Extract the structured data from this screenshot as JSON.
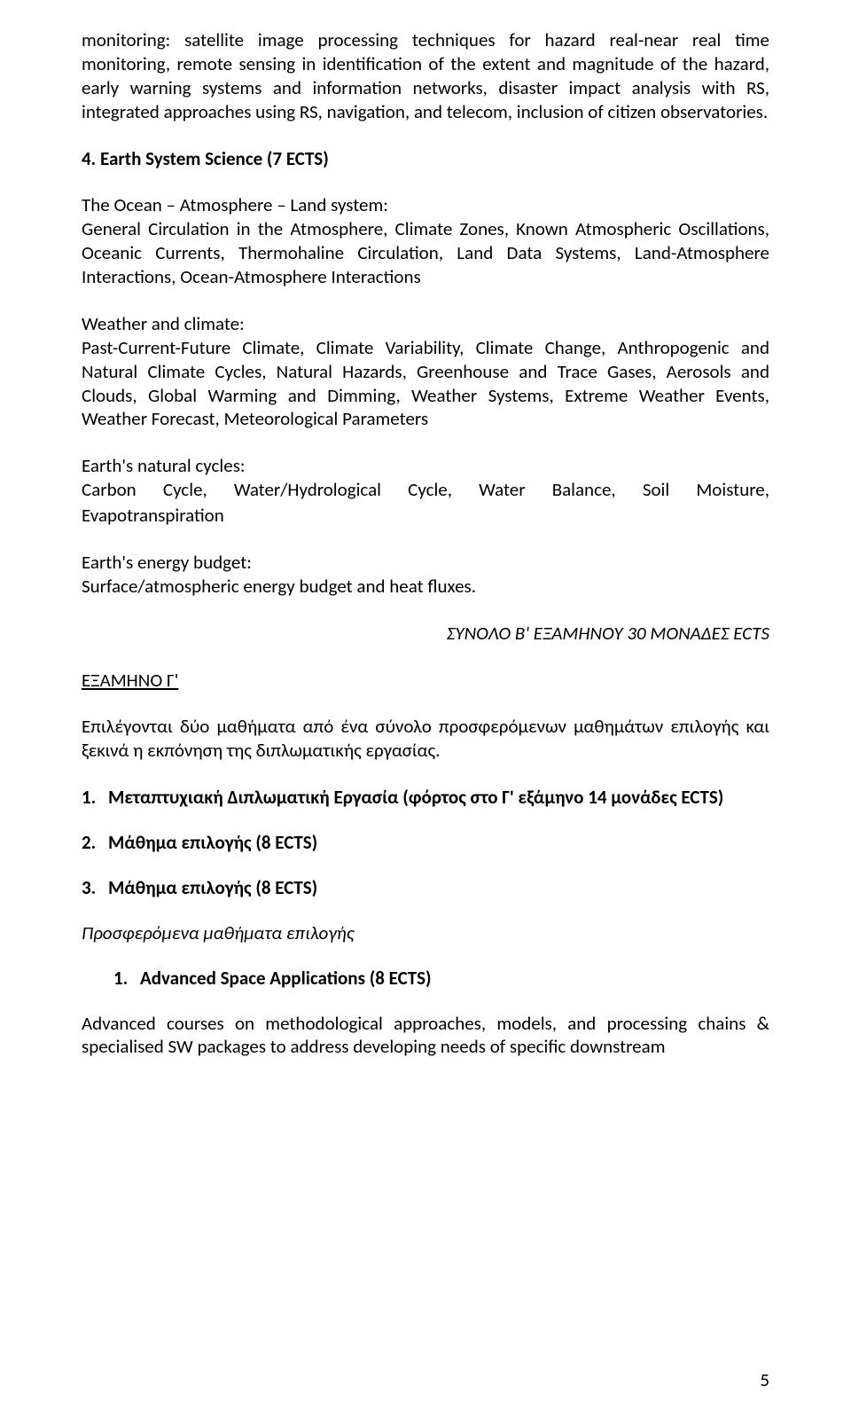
{
  "intro_para": "monitoring: satellite image processing techniques for hazard real-near real time monitoring, remote sensing in identification of the extent and magnitude of the hazard, early warning systems and information networks, disaster impact analysis with RS, integrated approaches using RS, navigation, and telecom, inclusion of citizen observatories.",
  "course4_title": "4.  Earth System Science (7 ECTS)",
  "oal_head": "The Ocean – Atmosphere – Land system:",
  "oal_body": "General Circulation in the Atmosphere, Climate Zones, Known Atmospheric Oscillations, Oceanic Currents, Thermohaline Circulation, Land Data Systems, Land-Atmosphere Interactions, Ocean-Atmosphere Interactions",
  "wc_head": "Weather and climate:",
  "wc_body": "Past-Current-Future Climate, Climate Variability, Climate Change, Anthropogenic and Natural Climate Cycles, Natural Hazards, Greenhouse and Trace Gases, Aerosols and Clouds, Global Warming and Dimming, Weather Systems, Extreme Weather Events, Weather Forecast, Meteorological Parameters",
  "nc_head": "Earth's natural cycles:",
  "nc_line1_words": [
    "Carbon",
    "Cycle,",
    "Water/Hydrological",
    "Cycle,",
    "Water",
    "Balance,",
    "Soil",
    "Moisture,"
  ],
  "nc_line2": "Evapotranspiration",
  "eb_head": "Earth's energy budget:",
  "eb_body": "Surface/atmospheric energy budget and heat fluxes.",
  "total_b": "ΣΥΝΟΛΟ Β' ΕΞΑΜΗΝΟΥ 30 ΜΟΝΑΔΕΣ ECTS",
  "sem_c": "ΕΞΑΜΗΝΟ Γ'",
  "sem_c_intro": "Επιλέγονται δύο μαθήματα από ένα σύνολο προσφερόμενων μαθημάτων επιλογής και ξεκινά η εκπόνηση της διπλωματικής εργασίας.",
  "list": [
    {
      "n": "1.",
      "t": "Μεταπτυχιακή Διπλωματική Εργασία (φόρτος στο Γ' εξάμηνο 14 μονάδες ECTS)"
    },
    {
      "n": "2.",
      "t": "Μάθημα επιλογής (8 ECTS)"
    },
    {
      "n": "3.",
      "t": "Μάθημα επιλογής (8 ECTS)"
    }
  ],
  "offered_head": "Προσφερόμενα μαθήματα επιλογής",
  "inner": [
    {
      "n": "1.",
      "t": "Advanced Space Applications (8 ECTS)"
    }
  ],
  "adv_body": "Advanced courses on methodological approaches, models, and processing chains & specialised SW packages to address developing needs of specific downstream",
  "page_number": "5"
}
